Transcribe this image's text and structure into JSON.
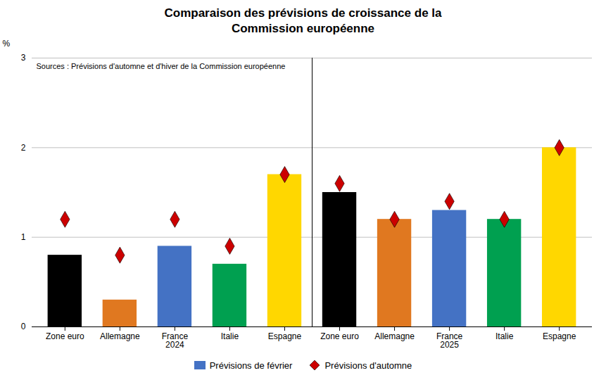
{
  "chart_data": {
    "type": "bar",
    "title": "Comparaison des prévisions de croissance de la\nCommission européenne",
    "ylabel": "%",
    "annotation": "Sources : Prévisions d'automne et d'hiver de la Commission européenne",
    "categories": [
      "Zone euro",
      "Allemagne",
      "France\n2024",
      "Italie",
      "Espagne",
      "Zone euro",
      "Allemagne",
      "France\n2025",
      "Italie",
      "Espagne"
    ],
    "series": [
      {
        "name": "Prévisions de février",
        "type": "bar",
        "color": "#4472c4",
        "colors": [
          "#000000",
          "#e07820",
          "#4472c4",
          "#00a050",
          "#ffd700",
          "#000000",
          "#e07820",
          "#4472c4",
          "#00a050",
          "#ffd700"
        ],
        "values": [
          0.8,
          0.3,
          0.9,
          0.7,
          1.7,
          1.5,
          1.2,
          1.3,
          1.2,
          2.0
        ]
      },
      {
        "name": "Prévisions d'automne",
        "type": "scatter",
        "marker": "diamond",
        "color": "#cc0000",
        "values": [
          1.2,
          0.8,
          1.2,
          0.9,
          1.7,
          1.6,
          1.2,
          1.4,
          1.2,
          2.0
        ]
      }
    ],
    "ylim": [
      0,
      3
    ],
    "yticks": [
      0,
      1,
      2,
      3
    ],
    "grid": true,
    "legend": "bottom"
  }
}
